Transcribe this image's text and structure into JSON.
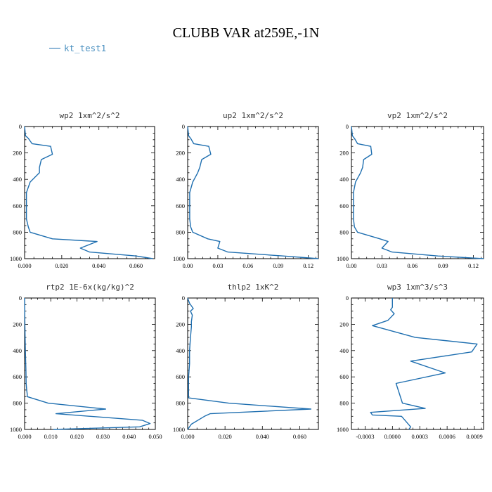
{
  "title": "CLUBB VAR at259E,-1N",
  "legend": {
    "label": "kt_test1",
    "color": "#1f6fb0"
  },
  "line_color": "#1f6fb0",
  "chart_data": [
    {
      "type": "line",
      "title": "wp2  1xm^2/s^2",
      "xlim": [
        0,
        0.07
      ],
      "ylim": [
        0,
        1000
      ],
      "y_inverted": true,
      "xticks": [
        0,
        0.02,
        0.04,
        0.06
      ],
      "xtick_labels": [
        "0.000",
        "0.020",
        "0.040",
        "0.060"
      ],
      "yticks": [
        0,
        200,
        400,
        600,
        800,
        1000
      ],
      "series": [
        {
          "x": [
            0.0,
            0.0005,
            0.002,
            0.004,
            0.014,
            0.015,
            0.009,
            0.008,
            0.008,
            0.003,
            0.001,
            0.001,
            0.001,
            0.001,
            0.001,
            0.002,
            0.003,
            0.015,
            0.039,
            0.03,
            0.035,
            0.06,
            0.069
          ],
          "y": [
            0,
            70,
            90,
            130,
            150,
            210,
            250,
            310,
            350,
            420,
            500,
            550,
            600,
            650,
            700,
            760,
            800,
            850,
            870,
            920,
            950,
            980,
            1000
          ]
        }
      ]
    },
    {
      "type": "line",
      "title": "up2  1xm^2/s^2",
      "xlim": [
        0,
        0.13
      ],
      "ylim": [
        0,
        1000
      ],
      "y_inverted": true,
      "xticks": [
        0,
        0.03,
        0.06,
        0.09,
        0.12
      ],
      "xtick_labels": [
        "0.00",
        "0.03",
        "0.06",
        "0.09",
        "0.12"
      ],
      "yticks": [
        0,
        200,
        400,
        600,
        800,
        1000
      ],
      "series": [
        {
          "x": [
            0.0,
            0.001,
            0.003,
            0.006,
            0.021,
            0.023,
            0.014,
            0.012,
            0.01,
            0.005,
            0.002,
            0.002,
            0.002,
            0.002,
            0.002,
            0.003,
            0.005,
            0.02,
            0.032,
            0.03,
            0.04,
            0.095,
            0.13
          ],
          "y": [
            0,
            70,
            90,
            130,
            150,
            210,
            250,
            310,
            350,
            420,
            500,
            550,
            600,
            650,
            700,
            760,
            800,
            850,
            870,
            920,
            950,
            980,
            1000
          ]
        }
      ]
    },
    {
      "type": "line",
      "title": "vp2  1xm^2/s^2",
      "xlim": [
        0,
        0.13
      ],
      "ylim": [
        0,
        1000
      ],
      "y_inverted": true,
      "xticks": [
        0,
        0.03,
        0.06,
        0.09,
        0.12
      ],
      "xtick_labels": [
        "0.00",
        "0.03",
        "0.06",
        "0.09",
        "0.12"
      ],
      "yticks": [
        0,
        200,
        400,
        600,
        800,
        1000
      ],
      "series": [
        {
          "x": [
            0.0,
            0.001,
            0.003,
            0.006,
            0.019,
            0.02,
            0.012,
            0.011,
            0.009,
            0.004,
            0.002,
            0.002,
            0.002,
            0.002,
            0.002,
            0.003,
            0.006,
            0.028,
            0.036,
            0.03,
            0.04,
            0.085,
            0.13
          ],
          "y": [
            0,
            70,
            90,
            130,
            150,
            210,
            250,
            310,
            350,
            420,
            500,
            550,
            600,
            650,
            700,
            760,
            800,
            850,
            870,
            920,
            950,
            980,
            1000
          ]
        }
      ]
    },
    {
      "type": "line",
      "title": "rtp2  1E-6x(kg/kg)^2",
      "xlim": [
        0,
        0.05
      ],
      "ylim": [
        0,
        1000
      ],
      "y_inverted": true,
      "xticks": [
        0,
        0.01,
        0.02,
        0.03,
        0.04,
        0.05
      ],
      "xtick_labels": [
        "0.000",
        "0.010",
        "0.020",
        "0.030",
        "0.040",
        "0.050"
      ],
      "yticks": [
        0,
        200,
        400,
        600,
        800,
        1000
      ],
      "series": [
        {
          "x": [
            0.0,
            0.0001,
            0.0003,
            0.0005,
            0.0006,
            0.0008,
            0.001,
            0.001,
            0.009,
            0.031,
            0.012,
            0.045,
            0.048,
            0.044,
            0.011
          ],
          "y": [
            0,
            200,
            400,
            550,
            650,
            700,
            730,
            750,
            800,
            845,
            880,
            930,
            955,
            980,
            1000
          ]
        }
      ]
    },
    {
      "type": "line",
      "title": "thlp2  1xK^2",
      "xlim": [
        0,
        0.07
      ],
      "ylim": [
        0,
        1000
      ],
      "y_inverted": true,
      "xticks": [
        0,
        0.02,
        0.04,
        0.06
      ],
      "xtick_labels": [
        "0.000",
        "0.020",
        "0.040",
        "0.060"
      ],
      "yticks": [
        0,
        200,
        400,
        600,
        800,
        1000
      ],
      "series": [
        {
          "x": [
            0.0,
            0.0005,
            0.001,
            0.003,
            0.0015,
            0.0025,
            0.002,
            0.002,
            0.0015,
            0.001,
            0.001,
            0.0005,
            0.0005,
            0.0005,
            0.0005,
            0.022,
            0.066,
            0.012,
            0.009,
            0.002,
            0.0
          ],
          "y": [
            0,
            20,
            40,
            80,
            100,
            130,
            180,
            220,
            300,
            400,
            500,
            600,
            700,
            740,
            760,
            800,
            845,
            880,
            900,
            960,
            1000
          ]
        }
      ]
    },
    {
      "type": "line",
      "title": "wp3  1xm^3/s^3",
      "xlim": [
        -0.00045,
        0.001
      ],
      "ylim": [
        0,
        1000
      ],
      "y_inverted": true,
      "xticks": [
        -0.0003,
        0,
        0.0003,
        0.0006,
        0.0009
      ],
      "xtick_labels": [
        "-0.0003",
        "0.0000",
        "0.0003",
        "0.0006",
        "0.0009"
      ],
      "yticks": [
        0,
        200,
        400,
        600,
        800,
        1000
      ],
      "series": [
        {
          "x": [
            0.0,
            0.0,
            0.0,
            -2e-05,
            2e-05,
            -5e-05,
            -0.00022,
            0.00025,
            0.00093,
            0.00087,
            0.0002,
            0.00058,
            4e-05,
            0.00011,
            0.00036,
            -0.00024,
            -0.00022,
            0.0001,
            0.0002,
            0.00018
          ],
          "y": [
            0,
            30,
            70,
            90,
            120,
            170,
            210,
            300,
            350,
            410,
            480,
            570,
            650,
            800,
            840,
            870,
            890,
            900,
            980,
            1000
          ]
        }
      ]
    }
  ]
}
